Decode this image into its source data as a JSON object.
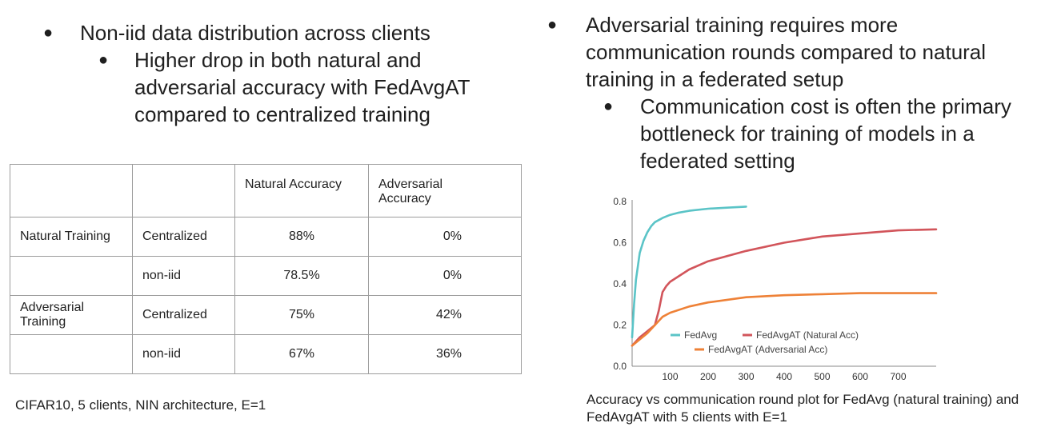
{
  "left_bullets": {
    "level1": "Non-iid data distribution across clients",
    "level2": [
      "Higher drop in both natural and",
      "adversarial accuracy with FedAvgAT",
      "compared to centralized training"
    ]
  },
  "right_bullets": {
    "level1": [
      "Adversarial training requires more",
      "communication rounds compared to natural",
      "training in a federated setup"
    ],
    "level2": [
      "Communication cost is often the primary",
      "bottleneck for training of models in a",
      "federated setting"
    ]
  },
  "table": {
    "headers": [
      "",
      "",
      "Natural Accuracy",
      "Adversarial Accuracy"
    ],
    "rows": [
      [
        "Natural Training",
        "Centralized",
        "88%",
        "0%"
      ],
      [
        "",
        "non-iid",
        "78.5%",
        "0%"
      ],
      [
        "Adversarial Training",
        "Centralized",
        "75%",
        "42%"
      ],
      [
        "",
        "non-iid",
        "67%",
        "36%"
      ]
    ],
    "caption": "CIFAR10, 5 clients, NIN architecture, E=1"
  },
  "chart_caption": "Accuracy vs communication round plot for FedAvg (natural training) and FedAvgAT with 5 clients with E=1",
  "chart_data": {
    "type": "line",
    "title": "",
    "xlabel": "",
    "ylabel": "",
    "xlim": [
      0,
      800
    ],
    "ylim": [
      0,
      0.8
    ],
    "xticks": [
      "100",
      "200",
      "300",
      "400",
      "500",
      "600",
      "700"
    ],
    "yticks": [
      "0.0",
      "0.2",
      "0.4",
      "0.6",
      "0.8"
    ],
    "legend_position": "bottom",
    "grid": false,
    "series": [
      {
        "name": "FedAvg",
        "color": "#5bc4c7",
        "x": [
          0,
          5,
          10,
          20,
          30,
          40,
          50,
          60,
          70,
          80,
          100,
          120,
          150,
          200,
          250,
          300
        ],
        "y": [
          0.14,
          0.3,
          0.42,
          0.55,
          0.61,
          0.65,
          0.68,
          0.7,
          0.71,
          0.72,
          0.735,
          0.745,
          0.755,
          0.765,
          0.77,
          0.775
        ]
      },
      {
        "name": "FedAvgAT (Natural Acc)",
        "color": "#d2555b",
        "x": [
          0,
          20,
          40,
          60,
          70,
          80,
          90,
          100,
          150,
          200,
          300,
          400,
          500,
          600,
          700,
          800
        ],
        "y": [
          0.1,
          0.14,
          0.17,
          0.2,
          0.27,
          0.36,
          0.39,
          0.41,
          0.47,
          0.51,
          0.56,
          0.6,
          0.63,
          0.645,
          0.66,
          0.665
        ]
      },
      {
        "name": "FedAvgAT (Adversarial Acc)",
        "color": "#ee8137",
        "x": [
          0,
          20,
          40,
          60,
          80,
          100,
          150,
          200,
          300,
          400,
          500,
          600,
          700,
          800
        ],
        "y": [
          0.1,
          0.13,
          0.16,
          0.2,
          0.24,
          0.26,
          0.29,
          0.31,
          0.335,
          0.345,
          0.35,
          0.355,
          0.355,
          0.355
        ]
      }
    ]
  }
}
